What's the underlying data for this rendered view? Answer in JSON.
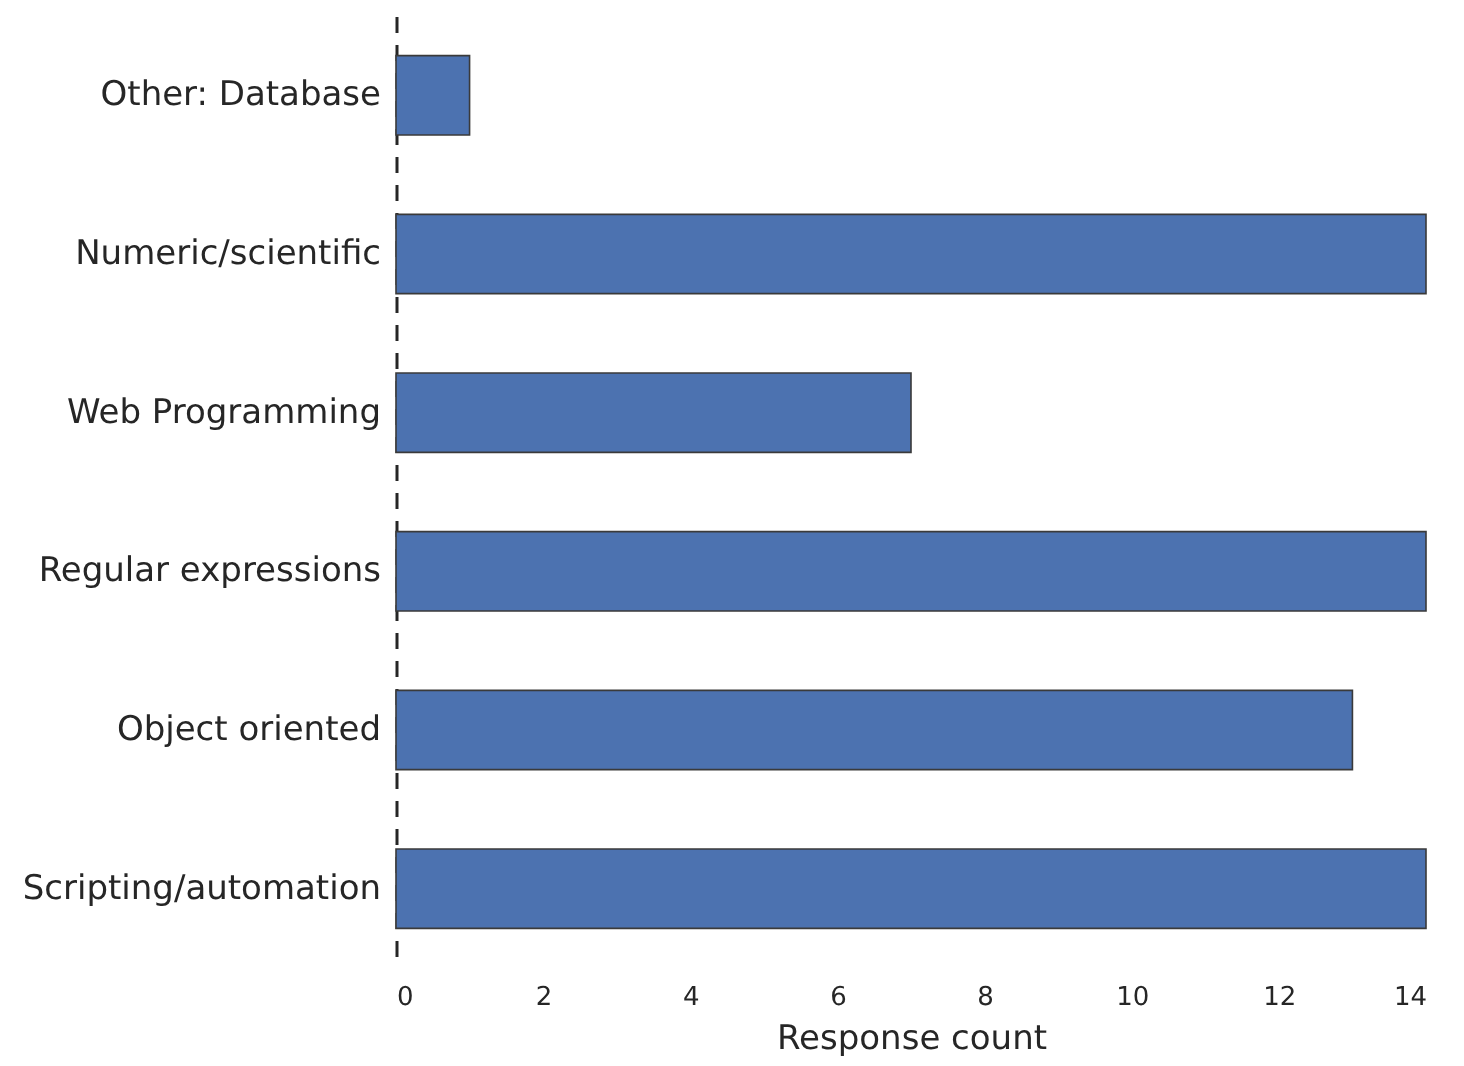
{
  "chart_data": {
    "type": "bar",
    "orientation": "horizontal",
    "xlabel": "Response count",
    "categories": [
      "Other: Database",
      "Numeric/scientific",
      "Web Programming",
      "Regular expressions",
      "Object oriented",
      "Scripting/automation"
    ],
    "values": [
      1,
      14,
      7,
      14,
      13,
      14
    ],
    "color": "#4c72b0",
    "xlim": [
      0,
      14
    ],
    "xticks": [
      0,
      2,
      4,
      6,
      8,
      10,
      12,
      14
    ],
    "grid": false
  }
}
